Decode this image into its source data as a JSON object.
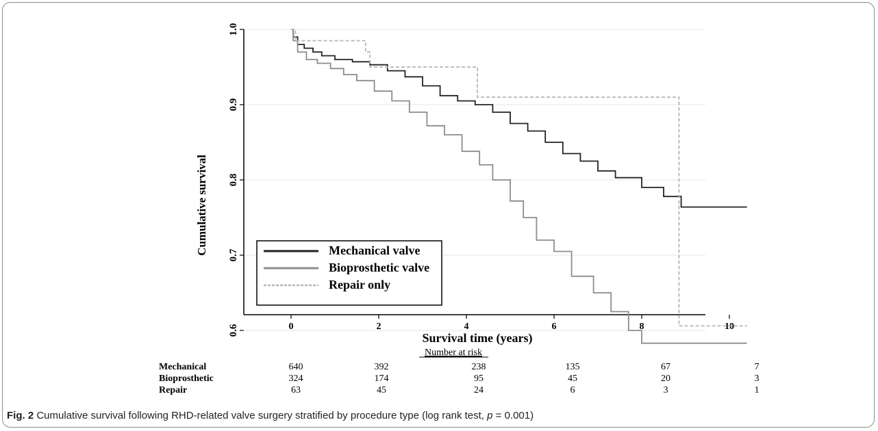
{
  "chart_data": {
    "type": "line",
    "title": "",
    "xlabel": "Survival time (years)",
    "ylabel": "Cumulative survival",
    "xlim": [
      -0.5,
      11
    ],
    "ylim": [
      0.55,
      1.0
    ],
    "x_ticks": [
      0,
      2,
      4,
      6,
      8,
      10
    ],
    "y_ticks": [
      0.6,
      0.7,
      0.8,
      0.9,
      1.0
    ],
    "grid": "horizontal",
    "legend_position": "bottom-left",
    "series": [
      {
        "name": "Mechanical valve",
        "color": "#222222",
        "style": "solid",
        "steps": [
          [
            0,
            1.0
          ],
          [
            0.05,
            0.99
          ],
          [
            0.15,
            0.98
          ],
          [
            0.3,
            0.975
          ],
          [
            0.5,
            0.97
          ],
          [
            0.7,
            0.965
          ],
          [
            1.0,
            0.96
          ],
          [
            1.4,
            0.957
          ],
          [
            1.8,
            0.953
          ],
          [
            2.2,
            0.945
          ],
          [
            2.6,
            0.937
          ],
          [
            3.0,
            0.925
          ],
          [
            3.4,
            0.912
          ],
          [
            3.8,
            0.905
          ],
          [
            4.2,
            0.9
          ],
          [
            4.6,
            0.89
          ],
          [
            5.0,
            0.875
          ],
          [
            5.4,
            0.865
          ],
          [
            5.8,
            0.85
          ],
          [
            6.2,
            0.835
          ],
          [
            6.6,
            0.825
          ],
          [
            7.0,
            0.812
          ],
          [
            7.4,
            0.803
          ],
          [
            8.0,
            0.79
          ],
          [
            8.5,
            0.778
          ],
          [
            8.9,
            0.764
          ],
          [
            10.4,
            0.764
          ]
        ]
      },
      {
        "name": "Bioprosthetic valve",
        "color": "#8c8c8c",
        "style": "solid",
        "steps": [
          [
            0,
            1.0
          ],
          [
            0.05,
            0.985
          ],
          [
            0.15,
            0.97
          ],
          [
            0.35,
            0.96
          ],
          [
            0.6,
            0.955
          ],
          [
            0.9,
            0.948
          ],
          [
            1.2,
            0.94
          ],
          [
            1.5,
            0.932
          ],
          [
            1.9,
            0.918
          ],
          [
            2.3,
            0.905
          ],
          [
            2.7,
            0.89
          ],
          [
            3.1,
            0.872
          ],
          [
            3.5,
            0.86
          ],
          [
            3.9,
            0.838
          ],
          [
            4.3,
            0.82
          ],
          [
            4.6,
            0.8
          ],
          [
            5.0,
            0.772
          ],
          [
            5.3,
            0.75
          ],
          [
            5.6,
            0.72
          ],
          [
            6.0,
            0.705
          ],
          [
            6.4,
            0.672
          ],
          [
            6.9,
            0.65
          ],
          [
            7.3,
            0.625
          ],
          [
            7.7,
            0.6
          ],
          [
            8.0,
            0.583
          ],
          [
            10.4,
            0.583
          ]
        ]
      },
      {
        "name": "Repair only",
        "color": "#b5b5b5",
        "style": "dashed",
        "steps": [
          [
            0,
            1.0
          ],
          [
            0.1,
            0.985
          ],
          [
            1.7,
            0.97
          ],
          [
            1.8,
            0.95
          ],
          [
            4.25,
            0.91
          ],
          [
            8.85,
            0.606
          ],
          [
            10.4,
            0.606
          ]
        ]
      }
    ],
    "risk_table": {
      "title": "Number at risk",
      "rows": [
        {
          "label": "Mechanical",
          "values": [
            "640",
            "392",
            "238",
            "135",
            "67",
            "7"
          ]
        },
        {
          "label": "Bioprosthetic",
          "values": [
            "324",
            "174",
            "95",
            "45",
            "20",
            "3"
          ]
        },
        {
          "label": "Repair",
          "values": [
            "63",
            "45",
            "24",
            "6",
            "3",
            "1"
          ]
        }
      ]
    }
  },
  "caption": {
    "label": "Fig. 2",
    "text": "Cumulative survival following RHD-related valve surgery stratified by procedure type (log rank test, ",
    "p_symbol": "p",
    "p_value": " = 0.001)"
  }
}
